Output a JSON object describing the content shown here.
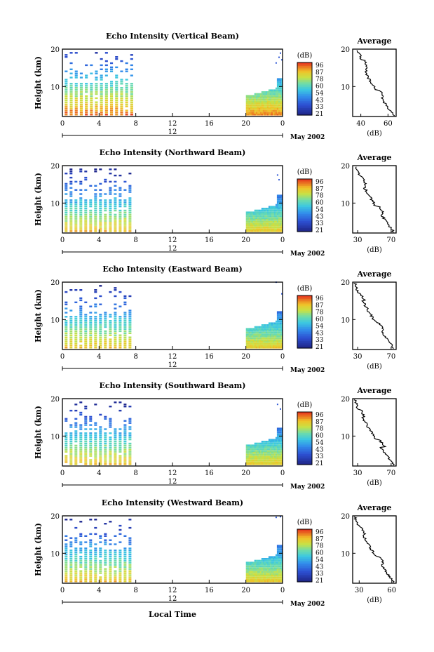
{
  "figure": {
    "x_axis_label": "Local Time",
    "date_label": "May 2002",
    "colorbar_unit": "(dB)",
    "colorbar_ticks": [
      "96",
      "87",
      "78",
      "60",
      "54",
      "43",
      "33",
      "21"
    ],
    "colors": {
      "low": "#2030a0",
      "mid_low": "#2f7fe8",
      "mid": "#40c8e0",
      "mid_high": "#c8e040",
      "high": "#f0c020",
      "top": "#e84020"
    }
  },
  "chart_data": [
    {
      "type": "heatmap",
      "title": "Echo Intensity (Vertical Beam)",
      "ylabel": "Height (km)",
      "xlabel": "Local Time",
      "x_ticks": [
        "0",
        "4",
        "8",
        "12",
        "16",
        "20",
        "0"
      ],
      "date_marker": "12",
      "y_ticks": [
        10,
        20
      ],
      "ylim": [
        2,
        20
      ],
      "xlim": [
        0,
        24
      ],
      "segments": [
        {
          "x_start": 0.0,
          "x_end": 8.0,
          "data_present": true
        },
        {
          "x_start": 20.0,
          "x_end": 24.0,
          "data_present": true
        }
      ],
      "average_profile": {
        "title": "Average",
        "xlabel": "(dB)",
        "x_ticks": [
          40,
          60
        ],
        "xlim": [
          34,
          66
        ],
        "y_ticks": [
          10,
          20
        ],
        "ylim": [
          2,
          20
        ]
      }
    },
    {
      "type": "heatmap",
      "title": "Echo Intensity (Northward Beam)",
      "ylabel": "Height (km)",
      "xlabel": "Local Time",
      "x_ticks": [
        "0",
        "4",
        "8",
        "12",
        "16",
        "20",
        "0"
      ],
      "date_marker": "12",
      "y_ticks": [
        10,
        20
      ],
      "ylim": [
        2,
        20
      ],
      "xlim": [
        0,
        24
      ],
      "segments": [
        {
          "x_start": 0.0,
          "x_end": 7.8,
          "data_present": true
        },
        {
          "x_start": 20.0,
          "x_end": 24.0,
          "data_present": true
        }
      ],
      "average_profile": {
        "title": "Average",
        "xlabel": "(dB)",
        "x_ticks": [
          30,
          70
        ],
        "xlim": [
          24,
          76
        ],
        "y_ticks": [
          10,
          20
        ],
        "ylim": [
          2,
          20
        ]
      }
    },
    {
      "type": "heatmap",
      "title": "Echo Intensity (Eastward Beam)",
      "ylabel": "Height (km)",
      "xlabel": "Local Time",
      "x_ticks": [
        "0",
        "4",
        "8",
        "12",
        "16",
        "20",
        "0"
      ],
      "date_marker": "12",
      "y_ticks": [
        10,
        20
      ],
      "ylim": [
        2,
        20
      ],
      "xlim": [
        0,
        24
      ],
      "segments": [
        {
          "x_start": 0.0,
          "x_end": 7.8,
          "data_present": true
        },
        {
          "x_start": 20.0,
          "x_end": 24.0,
          "data_present": true
        }
      ],
      "average_profile": {
        "title": "Average",
        "xlabel": "(dB)",
        "x_ticks": [
          30,
          70
        ],
        "xlim": [
          24,
          76
        ],
        "y_ticks": [
          10,
          20
        ],
        "ylim": [
          2,
          20
        ]
      }
    },
    {
      "type": "heatmap",
      "title": "Echo Intensity (Southward Beam)",
      "ylabel": "Height (km)",
      "xlabel": "Local Time",
      "x_ticks": [
        "0",
        "4",
        "8",
        "12",
        "16",
        "20",
        "0"
      ],
      "date_marker": "12",
      "y_ticks": [
        10,
        20
      ],
      "ylim": [
        2,
        20
      ],
      "xlim": [
        0,
        24
      ],
      "segments": [
        {
          "x_start": 0.0,
          "x_end": 7.8,
          "data_present": true
        },
        {
          "x_start": 20.0,
          "x_end": 24.0,
          "data_present": true
        }
      ],
      "average_profile": {
        "title": "Average",
        "xlabel": "(dB)",
        "x_ticks": [
          30,
          70
        ],
        "xlim": [
          24,
          76
        ],
        "y_ticks": [
          10,
          20
        ],
        "ylim": [
          2,
          20
        ]
      }
    },
    {
      "type": "heatmap",
      "title": "Echo Intensity (Westward Beam)",
      "ylabel": "Height (km)",
      "xlabel": "Local Time",
      "x_ticks": [
        "0",
        "4",
        "8",
        "12",
        "16",
        "20",
        "0"
      ],
      "date_marker": "12",
      "y_ticks": [
        10,
        20
      ],
      "ylim": [
        2,
        20
      ],
      "xlim": [
        0,
        24
      ],
      "segments": [
        {
          "x_start": 0.0,
          "x_end": 7.8,
          "data_present": true
        },
        {
          "x_start": 20.0,
          "x_end": 24.0,
          "data_present": true
        }
      ],
      "average_profile": {
        "title": "Average",
        "xlabel": "(dB)",
        "x_ticks": [
          30,
          60
        ],
        "xlim": [
          24,
          64
        ],
        "y_ticks": [
          10,
          20
        ],
        "ylim": [
          2,
          20
        ]
      }
    }
  ]
}
